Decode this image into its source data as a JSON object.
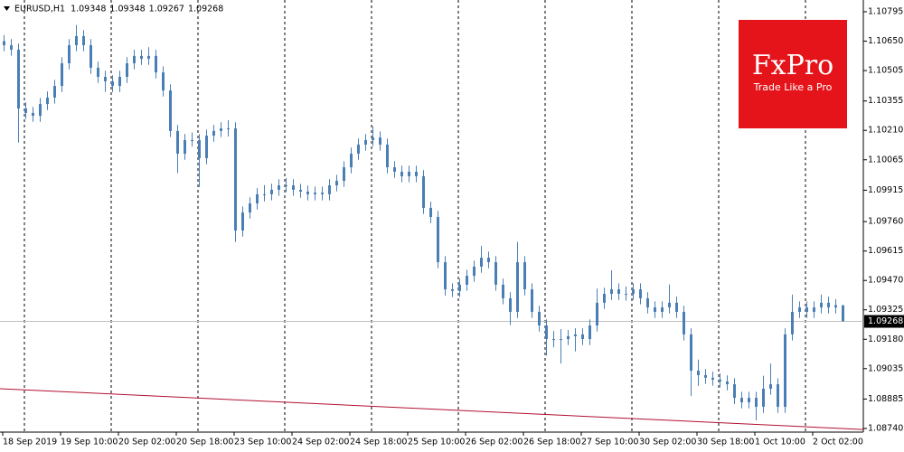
{
  "chart_data": {
    "type": "candlestick",
    "title": "EURUSD,H1",
    "header_values": [
      1.09348,
      1.09348,
      1.09267,
      1.09268
    ],
    "color": "#4a7fb5",
    "open": [
      1.1065,
      1.1063,
      1.10608,
      1.10318,
      1.10296,
      1.10282,
      1.1034,
      1.10372,
      1.10429,
      1.10541,
      1.1063,
      1.10675,
      1.1063,
      1.10519,
      1.10474,
      1.10452,
      1.10429,
      1.10474,
      1.10541,
      1.10577,
      1.10563,
      1.10577,
      1.10496,
      1.10407,
      1.10207,
      1.10095,
      1.10162,
      1.10162,
      1.10073,
      1.10184,
      1.10207,
      1.1022,
      1.1022,
      1.09716,
      1.09805,
      1.0985,
      1.09895,
      1.09895,
      1.09917,
      1.09939,
      1.09939,
      1.09917,
      1.09908,
      1.09895,
      1.09903,
      1.09895,
      1.09939,
      1.09961,
      1.10028,
      1.10095,
      1.1014,
      1.10162,
      1.10175,
      1.1014,
      1.10028,
      1.10006,
      1.09984,
      1.10006,
      1.09984,
      1.09828,
      1.09783,
      1.0956,
      1.09426,
      1.09418,
      1.09449,
      1.09493,
      1.09538,
      1.09582,
      1.0956,
      1.09449,
      1.09382,
      1.09315,
      1.0956,
      1.09426,
      1.09315,
      1.09248,
      1.09181,
      1.09181,
      1.09181,
      1.09195,
      1.09204,
      1.09181,
      1.09248,
      1.0936,
      1.09404,
      1.09426,
      1.09404,
      1.09404,
      1.09426,
      1.09382,
      1.09337,
      1.09315,
      1.09337,
      1.0936,
      1.09315,
      1.09204,
      1.09025,
      1.09003,
      1.0899,
      1.08981,
      1.08972,
      1.08958,
      1.08891,
      1.08869,
      1.08891,
      1.08847,
      1.08936,
      1.08958,
      1.08847,
      1.09204,
      1.09315,
      1.09337,
      1.09315,
      1.09337,
      1.0936,
      1.09337,
      1.09348
    ],
    "high": [
      1.1068,
      1.1066,
      1.10638,
      1.10348,
      1.10326,
      1.1037,
      1.10402,
      1.10459,
      1.10571,
      1.1066,
      1.1073,
      1.10705,
      1.1066,
      1.10549,
      1.10504,
      1.10482,
      1.10504,
      1.10571,
      1.10607,
      1.10607,
      1.1062,
      1.10607,
      1.10526,
      1.10437,
      1.10237,
      1.10192,
      1.102,
      1.10192,
      1.10214,
      1.10237,
      1.1025,
      1.1026,
      1.1025,
      1.09835,
      1.0988,
      1.09925,
      1.0994,
      1.09947,
      1.09969,
      1.09975,
      1.09969,
      1.09947,
      1.09938,
      1.09933,
      1.09933,
      1.09969,
      1.09991,
      1.10058,
      1.10125,
      1.1017,
      1.10192,
      1.1023,
      1.10205,
      1.1017,
      1.10058,
      1.10036,
      1.10036,
      1.10036,
      1.10014,
      1.09858,
      1.09813,
      1.0959,
      1.09456,
      1.09479,
      1.09523,
      1.09568,
      1.0964,
      1.09612,
      1.0959,
      1.09479,
      1.09412,
      1.0966,
      1.0959,
      1.09456,
      1.09345,
      1.09278,
      1.0922,
      1.0923,
      1.09225,
      1.09234,
      1.09234,
      1.09278,
      1.0943,
      1.09434,
      1.0952,
      1.09456,
      1.0944,
      1.09456,
      1.09456,
      1.09412,
      1.09367,
      1.09367,
      1.0945,
      1.0939,
      1.09345,
      1.09234,
      1.0908,
      1.09033,
      1.0902,
      1.09011,
      1.09002,
      1.08988,
      1.08921,
      1.08921,
      1.08921,
      1.09,
      1.0906,
      1.08988,
      1.09234,
      1.094,
      1.09367,
      1.09367,
      1.09367,
      1.094,
      1.0939,
      1.09378,
      1.09348
    ],
    "low": [
      1.106,
      1.10578,
      1.1015,
      1.10266,
      1.10252,
      1.10252,
      1.1031,
      1.10342,
      1.10399,
      1.10511,
      1.106,
      1.106,
      1.10489,
      1.10444,
      1.104,
      1.10399,
      1.10399,
      1.10444,
      1.10511,
      1.10533,
      1.10533,
      1.10466,
      1.10377,
      1.10177,
      1.1,
      1.10065,
      1.1013,
      1.0993,
      1.10043,
      1.10154,
      1.10177,
      1.1018,
      1.0966,
      1.09686,
      1.09775,
      1.0982,
      1.0986,
      1.09865,
      1.09887,
      1.09905,
      1.09887,
      1.09878,
      1.09865,
      1.09865,
      1.09865,
      1.09865,
      1.09909,
      1.09931,
      1.09998,
      1.10065,
      1.1011,
      1.10132,
      1.1011,
      1.09998,
      1.09976,
      1.09954,
      1.09954,
      1.09954,
      1.09798,
      1.09753,
      1.0953,
      1.09396,
      1.09388,
      1.09388,
      1.09419,
      1.09463,
      1.09508,
      1.0953,
      1.09419,
      1.09352,
      1.0925,
      1.09285,
      1.09396,
      1.09285,
      1.09218,
      1.091,
      1.0914,
      1.0906,
      1.09151,
      1.0912,
      1.09151,
      1.09151,
      1.09218,
      1.0933,
      1.09374,
      1.09374,
      1.0937,
      1.09374,
      1.09352,
      1.09307,
      1.09285,
      1.09285,
      1.09307,
      1.09285,
      1.09174,
      1.089,
      1.0895,
      1.0896,
      1.08951,
      1.08942,
      1.08928,
      1.08861,
      1.08839,
      1.08839,
      1.0878,
      1.08817,
      1.08906,
      1.08817,
      1.08817,
      1.09174,
      1.09285,
      1.09285,
      1.09285,
      1.09307,
      1.09307,
      1.09307,
      1.09267
    ],
    "close": [
      1.1063,
      1.10608,
      1.10318,
      1.10296,
      1.10282,
      1.1034,
      1.10372,
      1.10429,
      1.10541,
      1.1063,
      1.10675,
      1.1063,
      1.10519,
      1.10474,
      1.10452,
      1.10429,
      1.10474,
      1.10541,
      1.10577,
      1.10563,
      1.10577,
      1.10496,
      1.10407,
      1.10207,
      1.10095,
      1.10162,
      1.10162,
      1.10073,
      1.10184,
      1.10207,
      1.1022,
      1.1022,
      1.09716,
      1.09805,
      1.0985,
      1.09895,
      1.09895,
      1.09917,
      1.09939,
      1.09939,
      1.09917,
      1.09908,
      1.09895,
      1.09903,
      1.09895,
      1.09939,
      1.09961,
      1.10028,
      1.10095,
      1.1014,
      1.10162,
      1.10175,
      1.1014,
      1.10028,
      1.10006,
      1.09984,
      1.10006,
      1.09984,
      1.09828,
      1.09783,
      1.0956,
      1.09426,
      1.09418,
      1.09449,
      1.09493,
      1.09538,
      1.09582,
      1.0956,
      1.09449,
      1.09382,
      1.09315,
      1.0956,
      1.09426,
      1.09315,
      1.09248,
      1.09181,
      1.09181,
      1.09181,
      1.09195,
      1.09204,
      1.09181,
      1.09248,
      1.0936,
      1.09404,
      1.09426,
      1.09404,
      1.09404,
      1.09426,
      1.09382,
      1.09337,
      1.09315,
      1.09337,
      1.0936,
      1.09315,
      1.09204,
      1.09025,
      1.09003,
      1.0899,
      1.08981,
      1.08972,
      1.08958,
      1.08891,
      1.08869,
      1.08891,
      1.08847,
      1.08936,
      1.08958,
      1.08847,
      1.09204,
      1.09315,
      1.09337,
      1.09315,
      1.09337,
      1.0936,
      1.09337,
      1.09348,
      1.09268
    ],
    "ylim": [
      1.08722,
      1.10853
    ],
    "yticks": [
      1.10795,
      {
        "value": 1.1065,
        "label": "1.10650"
      },
      1.10505,
      1.10355,
      {
        "value": 1.1021,
        "label": "1.10210"
      },
      1.10065,
      1.09915,
      {
        "value": 1.0976,
        "label": "1.09760"
      },
      1.09615,
      {
        "value": 1.0947,
        "label": "1.09470"
      },
      1.09325,
      {
        "value": 1.0918,
        "label": "1.09180"
      },
      1.09035,
      1.08885,
      {
        "value": 1.0874,
        "label": "1.08740"
      }
    ],
    "x_labels": [
      "18 Sep 2019",
      "19 Sep 10:00",
      "20 Sep 02:00",
      "20 Sep 18:00",
      "23 Sep 10:00",
      "24 Sep 02:00",
      "24 Sep 18:00",
      "25 Sep 10:00",
      "26 Sep 02:00",
      "26 Sep 18:00",
      "27 Sep 10:00",
      "30 Sep 02:00",
      "30 Sep 18:00",
      "1 Oct 10:00",
      "2 Oct 02:00"
    ],
    "last_price": 1.09268,
    "trendline": {
      "color": "#b01030",
      "values": [
        1.08936,
        1.08735
      ]
    }
  },
  "logo": {
    "name": "FxPro",
    "tagline": "Trade Like a Pro"
  }
}
